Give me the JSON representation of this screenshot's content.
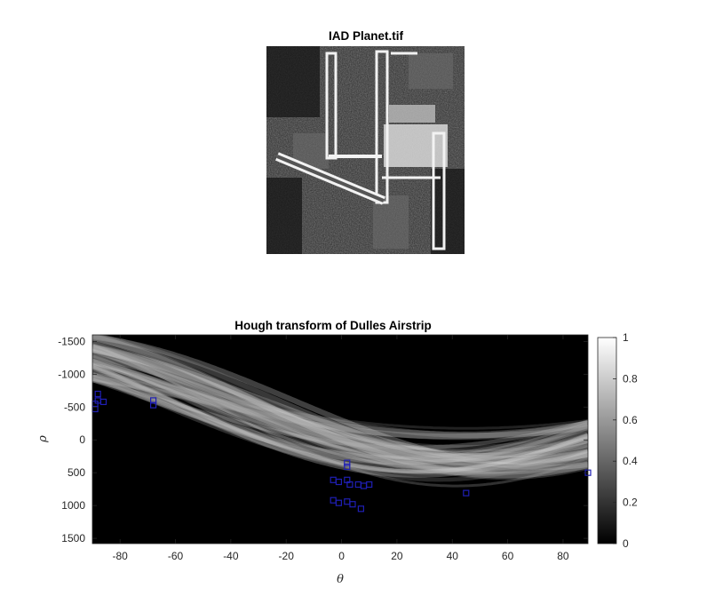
{
  "top_image": {
    "title": "IAD Planet.tif",
    "description": "Grayscale satellite image of airport runways and terminals"
  },
  "chart_data": {
    "type": "heatmap",
    "title": "Hough transform of Dulles Airstrip",
    "xlabel": "θ",
    "ylabel": "ρ",
    "xlim": [
      -90,
      89
    ],
    "ylim": [
      -1600,
      1580
    ],
    "y_reversed": true,
    "x_ticks": [
      -80,
      -60,
      -40,
      -20,
      0,
      20,
      40,
      60,
      80
    ],
    "y_ticks": [
      -1500,
      -1000,
      -500,
      0,
      500,
      1000,
      1500
    ],
    "colormap": "gray",
    "colorbar": {
      "min": 0,
      "max": 1,
      "ticks": [
        0,
        0.2,
        0.4,
        0.6,
        0.8,
        1
      ]
    },
    "peak_marker": {
      "shape": "square",
      "color": "#1f1fb4"
    },
    "peaks": [
      {
        "theta": -88,
        "rho": -700
      },
      {
        "theta": -88,
        "rho": -600
      },
      {
        "theta": -89,
        "rho": -550
      },
      {
        "theta": -89,
        "rho": -470
      },
      {
        "theta": -86,
        "rho": -580
      },
      {
        "theta": -68,
        "rho": -600
      },
      {
        "theta": -68,
        "rho": -530
      },
      {
        "theta": 2,
        "rho": 350
      },
      {
        "theta": 2,
        "rho": 410
      },
      {
        "theta": 2,
        "rho": 610
      },
      {
        "theta": 3,
        "rho": 680
      },
      {
        "theta": -3,
        "rho": 610
      },
      {
        "theta": -1,
        "rho": 640
      },
      {
        "theta": 6,
        "rho": 680
      },
      {
        "theta": 8,
        "rho": 700
      },
      {
        "theta": 10,
        "rho": 680
      },
      {
        "theta": -3,
        "rho": 920
      },
      {
        "theta": -1,
        "rho": 960
      },
      {
        "theta": 2,
        "rho": 940
      },
      {
        "theta": 4,
        "rho": 980
      },
      {
        "theta": 7,
        "rho": 1050
      },
      {
        "theta": 45,
        "rho": 810
      },
      {
        "theta": 89,
        "rho": 500
      }
    ]
  }
}
